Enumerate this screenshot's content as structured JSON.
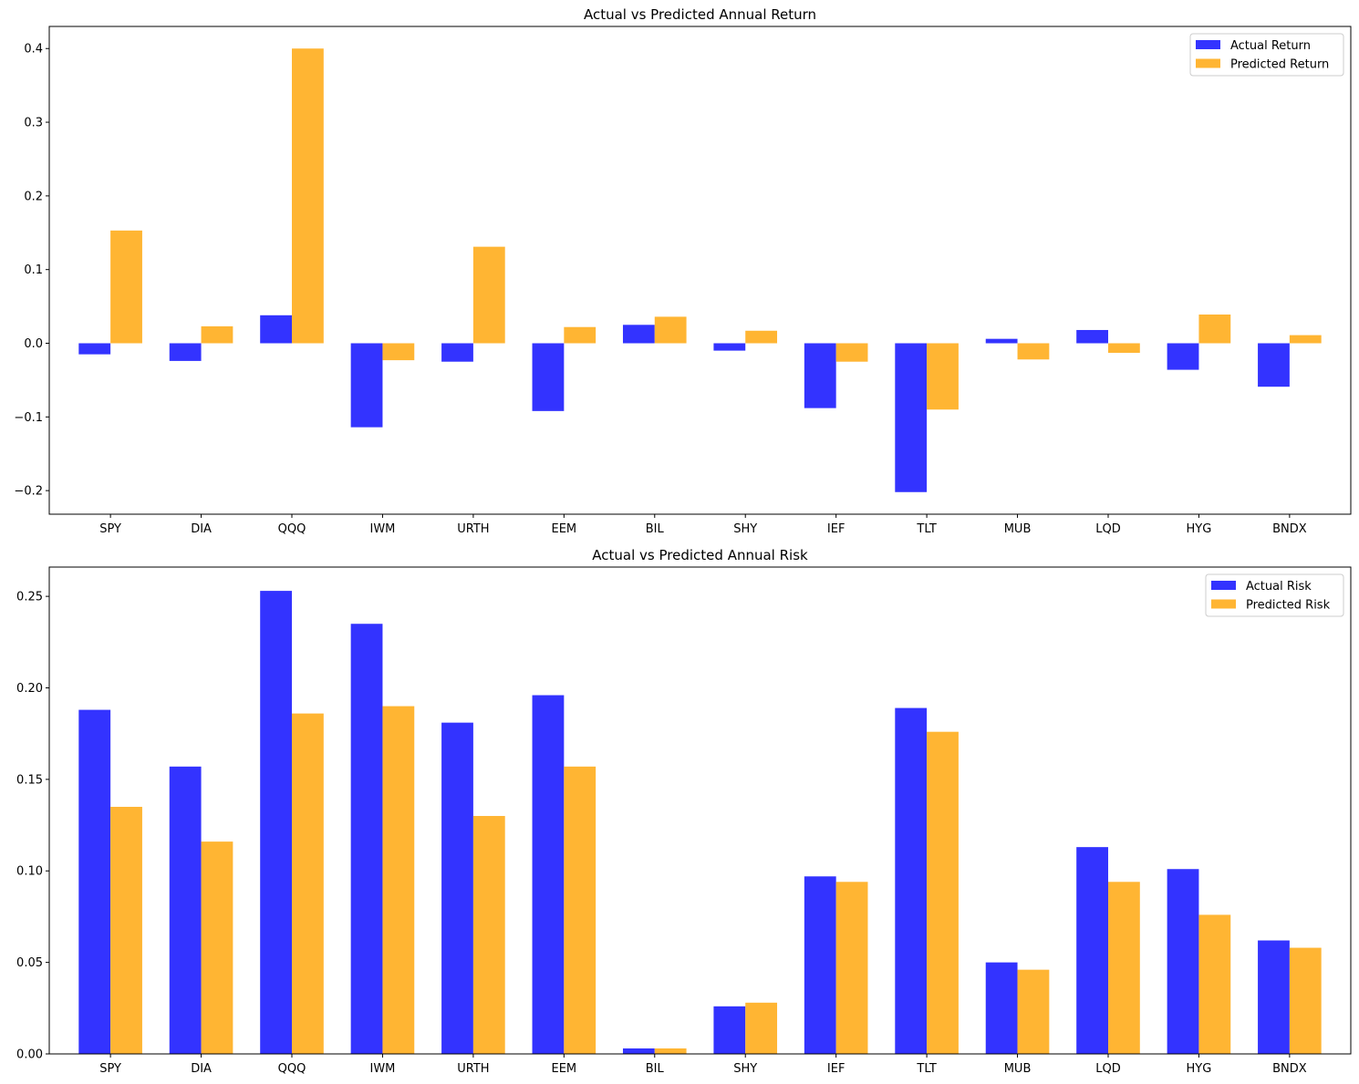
{
  "chart_data": [
    {
      "type": "bar",
      "title": "Actual vs Predicted Annual Return",
      "xlabel": "",
      "ylabel": "",
      "categories": [
        "SPY",
        "DIA",
        "QQQ",
        "IWM",
        "URTH",
        "EEM",
        "BIL",
        "SHY",
        "IEF",
        "TLT",
        "MUB",
        "LQD",
        "HYG",
        "BNDX"
      ],
      "series": [
        {
          "name": "Actual Return",
          "color": "#3333ff",
          "values": [
            -0.015,
            -0.024,
            0.038,
            -0.114,
            -0.025,
            -0.092,
            0.025,
            -0.01,
            -0.088,
            -0.202,
            0.006,
            0.018,
            -0.036,
            -0.059
          ]
        },
        {
          "name": "Predicted Return",
          "color": "#ffb533",
          "values": [
            0.153,
            0.023,
            0.4,
            -0.023,
            0.131,
            0.022,
            0.036,
            0.017,
            -0.025,
            -0.09,
            -0.022,
            -0.013,
            0.039,
            0.011
          ]
        }
      ],
      "ylim": [
        -0.232,
        0.43
      ],
      "yticks": [
        -0.2,
        -0.1,
        0.0,
        0.1,
        0.2,
        0.3,
        0.4
      ],
      "ytick_labels": [
        "−0.2",
        "−0.1",
        "0.0",
        "0.1",
        "0.2",
        "0.3",
        "0.4"
      ],
      "grid": false,
      "legend_position": "top-right"
    },
    {
      "type": "bar",
      "title": "Actual vs Predicted Annual Risk",
      "xlabel": "",
      "ylabel": "",
      "categories": [
        "SPY",
        "DIA",
        "QQQ",
        "IWM",
        "URTH",
        "EEM",
        "BIL",
        "SHY",
        "IEF",
        "TLT",
        "MUB",
        "LQD",
        "HYG",
        "BNDX"
      ],
      "series": [
        {
          "name": "Actual Risk",
          "color": "#3333ff",
          "values": [
            0.188,
            0.157,
            0.253,
            0.235,
            0.181,
            0.196,
            0.003,
            0.026,
            0.097,
            0.189,
            0.05,
            0.113,
            0.101,
            0.062
          ]
        },
        {
          "name": "Predicted Risk",
          "color": "#ffb533",
          "values": [
            0.135,
            0.116,
            0.186,
            0.19,
            0.13,
            0.157,
            0.003,
            0.028,
            0.094,
            0.176,
            0.046,
            0.094,
            0.076,
            0.058
          ]
        }
      ],
      "ylim": [
        0,
        0.266
      ],
      "yticks": [
        0.0,
        0.05,
        0.1,
        0.15,
        0.2,
        0.25
      ],
      "ytick_labels": [
        "0.00",
        "0.05",
        "0.10",
        "0.15",
        "0.20",
        "0.25"
      ],
      "grid": false,
      "legend_position": "top-right"
    }
  ]
}
